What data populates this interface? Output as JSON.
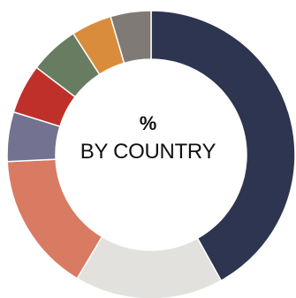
{
  "chart_data": {
    "type": "pie",
    "style": "donut",
    "center_label": {
      "line1": "%",
      "line2": "BY COUNTRY"
    },
    "slices": [
      {
        "value": 41.5,
        "color": "#2e3550"
      },
      {
        "value": 16.5,
        "color": "#e2e1de"
      },
      {
        "value": 15.5,
        "color": "#d97a63"
      },
      {
        "value": 5.5,
        "color": "#737290"
      },
      {
        "value": 5.5,
        "color": "#c0302a"
      },
      {
        "value": 5.5,
        "color": "#687c62"
      },
      {
        "value": 4.5,
        "color": "#d98d3c"
      },
      {
        "value": 4.5,
        "color": "#7f7a75"
      }
    ]
  }
}
